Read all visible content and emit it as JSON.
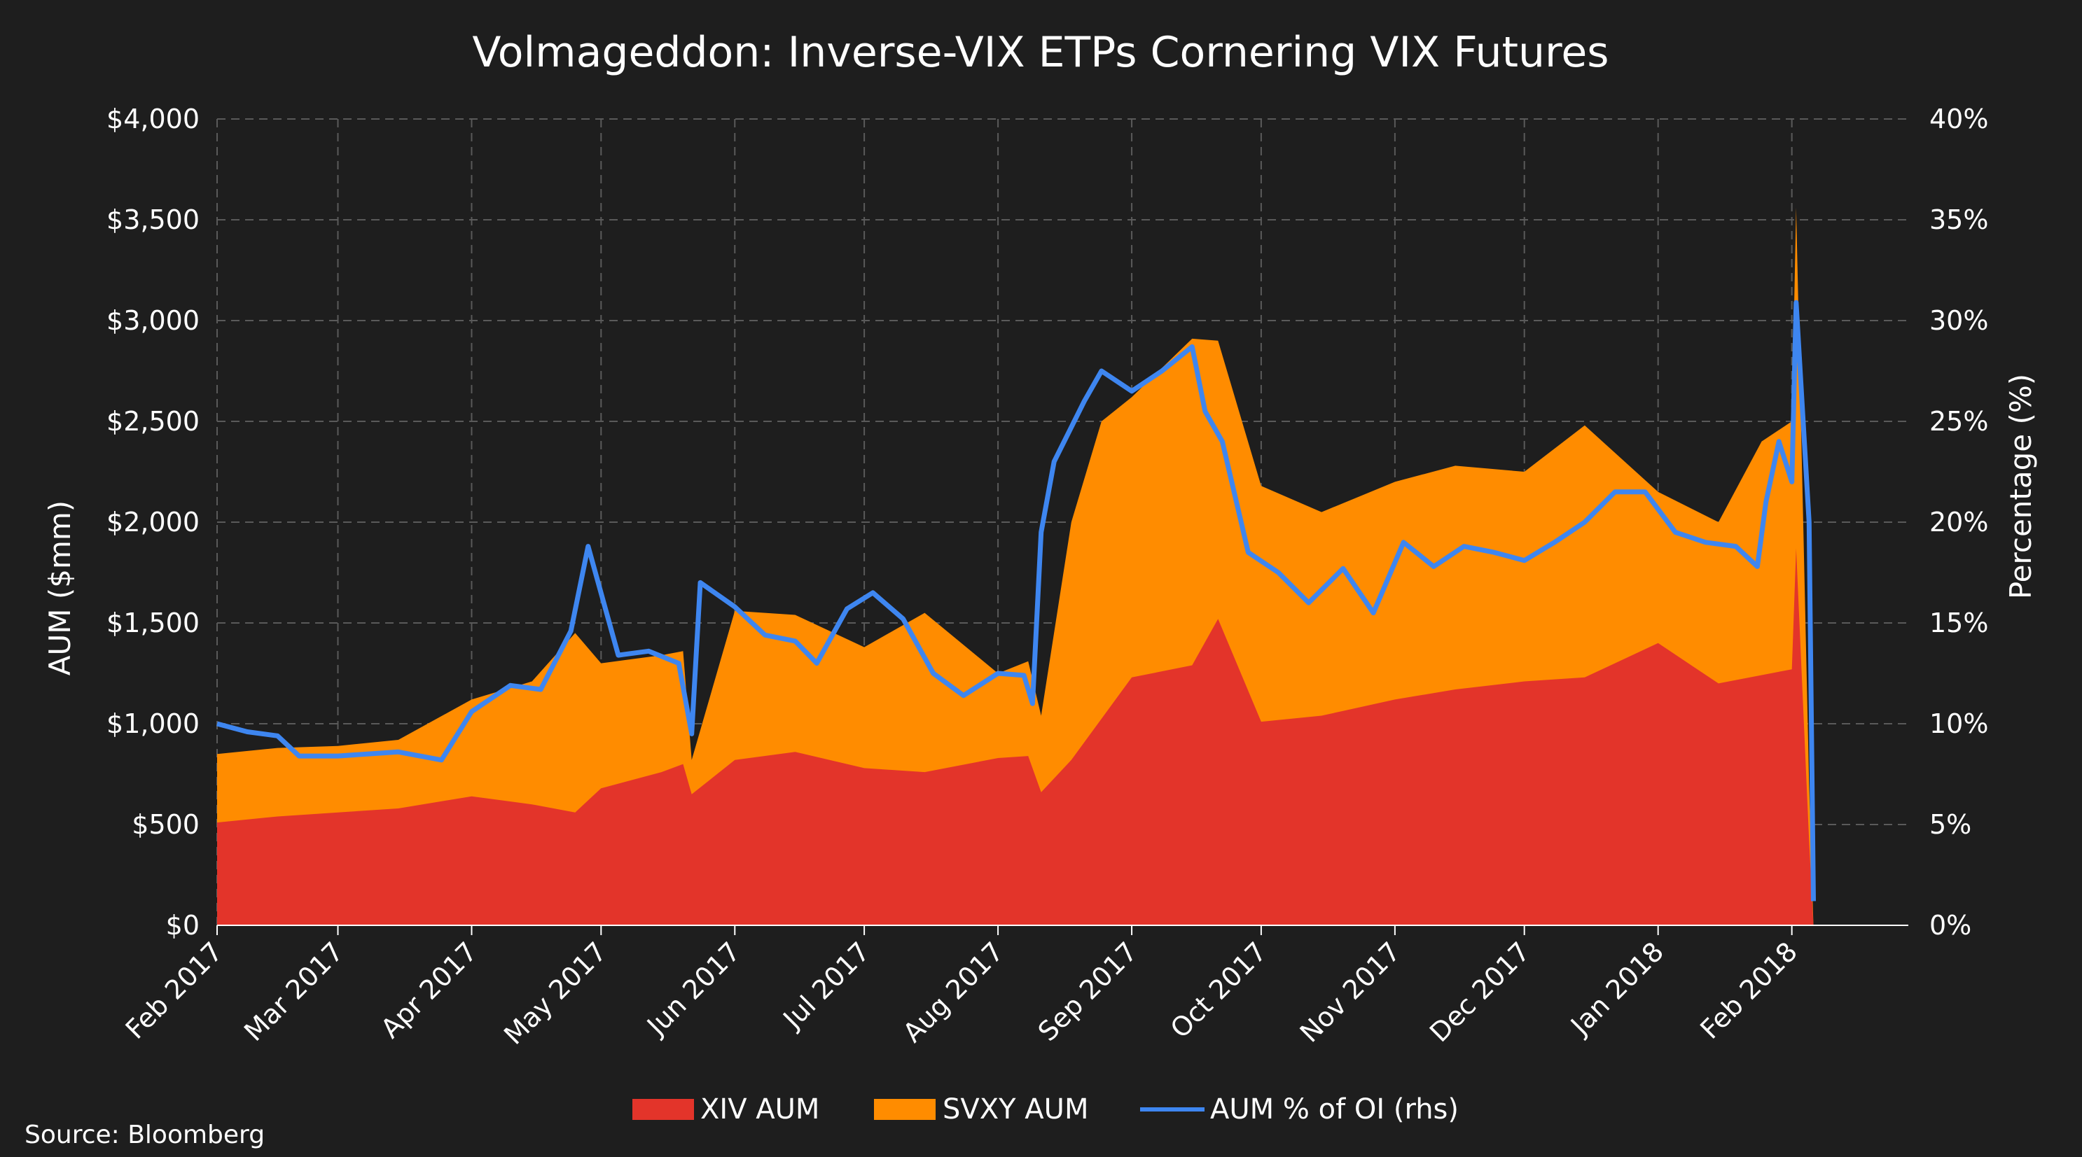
{
  "chart_data": {
    "type": "area",
    "title": "Volmageddon: Inverse-VIX ETPs Cornering VIX Futures",
    "ylabel": "AUM ($mm)",
    "y2label": "Percentage (%)",
    "ylim": [
      0,
      4000
    ],
    "y2lim": [
      0,
      40
    ],
    "yticks": [
      "$0",
      "$500",
      "$1,000",
      "$1,500",
      "$2,000",
      "$2,500",
      "$3,000",
      "$3,500",
      "$4,000"
    ],
    "y2ticks": [
      "0%",
      "5%",
      "10%",
      "15%",
      "20%",
      "25%",
      "30%",
      "35%",
      "40%"
    ],
    "xticks": [
      "Feb 2017",
      "Mar 2017",
      "Apr 2017",
      "May 2017",
      "Jun 2017",
      "Jul 2017",
      "Aug 2017",
      "Sep 2017",
      "Oct 2017",
      "Nov 2017",
      "Dec 2017",
      "Jan 2018",
      "Feb 2018"
    ],
    "xlim": [
      "2017-02-01",
      "2018-02-28"
    ],
    "grid": true,
    "legend_position": "bottom",
    "colors": {
      "xiv": "#e3342a",
      "svxy": "#ff8c00",
      "oi": "#3e86f0",
      "background": "#1e1e1e",
      "grid": "#5a5a5a"
    },
    "series": [
      {
        "name": "XIV AUM",
        "kind": "area",
        "x": [
          "2017-02-01",
          "2017-02-15",
          "2017-03-01",
          "2017-03-15",
          "2017-04-01",
          "2017-04-15",
          "2017-04-25",
          "2017-05-01",
          "2017-05-15",
          "2017-05-20",
          "2017-05-22",
          "2017-06-01",
          "2017-06-15",
          "2017-07-01",
          "2017-07-15",
          "2017-08-01",
          "2017-08-08",
          "2017-08-11",
          "2017-08-18",
          "2017-09-01",
          "2017-09-15",
          "2017-09-21",
          "2017-10-01",
          "2017-10-15",
          "2017-11-01",
          "2017-11-15",
          "2017-12-01",
          "2017-12-15",
          "2018-01-01",
          "2018-01-15",
          "2018-02-01",
          "2018-02-02",
          "2018-02-05",
          "2018-02-06"
        ],
        "values": [
          510,
          540,
          560,
          580,
          640,
          600,
          560,
          680,
          760,
          800,
          650,
          820,
          860,
          780,
          760,
          830,
          840,
          660,
          820,
          1230,
          1290,
          1520,
          1010,
          1040,
          1120,
          1170,
          1210,
          1230,
          1400,
          1200,
          1270,
          1870,
          420,
          0
        ]
      },
      {
        "name": "SVXY AUM",
        "kind": "stacked-area-total",
        "x": [
          "2017-02-01",
          "2017-02-15",
          "2017-03-01",
          "2017-03-15",
          "2017-04-01",
          "2017-04-15",
          "2017-04-25",
          "2017-05-01",
          "2017-05-15",
          "2017-05-20",
          "2017-05-22",
          "2017-06-01",
          "2017-06-15",
          "2017-07-01",
          "2017-07-15",
          "2017-08-01",
          "2017-08-08",
          "2017-08-11",
          "2017-08-18",
          "2017-08-25",
          "2017-09-01",
          "2017-09-15",
          "2017-09-21",
          "2017-10-01",
          "2017-10-15",
          "2017-11-01",
          "2017-11-15",
          "2017-12-01",
          "2017-12-15",
          "2018-01-01",
          "2018-01-15",
          "2018-01-25",
          "2018-02-01",
          "2018-02-02",
          "2018-02-05",
          "2018-02-06"
        ],
        "values": [
          850,
          880,
          890,
          920,
          1120,
          1210,
          1450,
          1300,
          1340,
          1360,
          820,
          1560,
          1540,
          1380,
          1550,
          1250,
          1310,
          1040,
          2000,
          2500,
          2620,
          2910,
          2900,
          2180,
          2050,
          2200,
          2280,
          2250,
          2480,
          2150,
          2000,
          2400,
          2500,
          3560,
          700,
          0
        ]
      },
      {
        "name": "AUM % of OI (rhs)",
        "kind": "line",
        "x": [
          "2017-02-01",
          "2017-02-08",
          "2017-02-15",
          "2017-02-20",
          "2017-03-01",
          "2017-03-15",
          "2017-03-25",
          "2017-04-01",
          "2017-04-10",
          "2017-04-17",
          "2017-04-24",
          "2017-04-28",
          "2017-05-05",
          "2017-05-12",
          "2017-05-19",
          "2017-05-22",
          "2017-05-24",
          "2017-06-01",
          "2017-06-08",
          "2017-06-15",
          "2017-06-20",
          "2017-06-27",
          "2017-07-03",
          "2017-07-10",
          "2017-07-17",
          "2017-07-24",
          "2017-08-01",
          "2017-08-07",
          "2017-08-09",
          "2017-08-11",
          "2017-08-14",
          "2017-08-21",
          "2017-08-25",
          "2017-09-01",
          "2017-09-08",
          "2017-09-15",
          "2017-09-18",
          "2017-09-22",
          "2017-09-28",
          "2017-10-05",
          "2017-10-12",
          "2017-10-20",
          "2017-10-27",
          "2017-11-03",
          "2017-11-10",
          "2017-11-17",
          "2017-11-24",
          "2017-12-01",
          "2017-12-08",
          "2017-12-15",
          "2017-12-22",
          "2017-12-29",
          "2018-01-05",
          "2018-01-12",
          "2018-01-19",
          "2018-01-24",
          "2018-01-26",
          "2018-01-29",
          "2018-02-01",
          "2018-02-02",
          "2018-02-05",
          "2018-02-06"
        ],
        "values": [
          10.0,
          9.6,
          9.4,
          8.4,
          8.4,
          8.6,
          8.2,
          10.6,
          11.9,
          11.7,
          14.6,
          18.8,
          13.4,
          13.6,
          13.0,
          9.5,
          17.0,
          15.8,
          14.4,
          14.1,
          13.0,
          15.7,
          16.5,
          15.2,
          12.5,
          11.4,
          12.5,
          12.4,
          11.0,
          19.5,
          23.0,
          26.0,
          27.5,
          26.5,
          27.5,
          28.7,
          25.5,
          24.0,
          18.5,
          17.5,
          16.0,
          17.7,
          15.5,
          19.0,
          17.8,
          18.8,
          18.5,
          18.1,
          19.0,
          20.0,
          21.5,
          21.5,
          19.5,
          19.0,
          18.8,
          17.8,
          21.0,
          24.0,
          22.0,
          30.9,
          20.0,
          1.2
        ]
      }
    ]
  },
  "legend": {
    "items": [
      {
        "label": "XIV AUM",
        "kind": "box",
        "color": "#e3342a"
      },
      {
        "label": "SVXY AUM",
        "kind": "box",
        "color": "#ff8c00"
      },
      {
        "label": "AUM % of OI (rhs)",
        "kind": "line",
        "color": "#3e86f0"
      }
    ]
  },
  "source": "Source: Bloomberg"
}
